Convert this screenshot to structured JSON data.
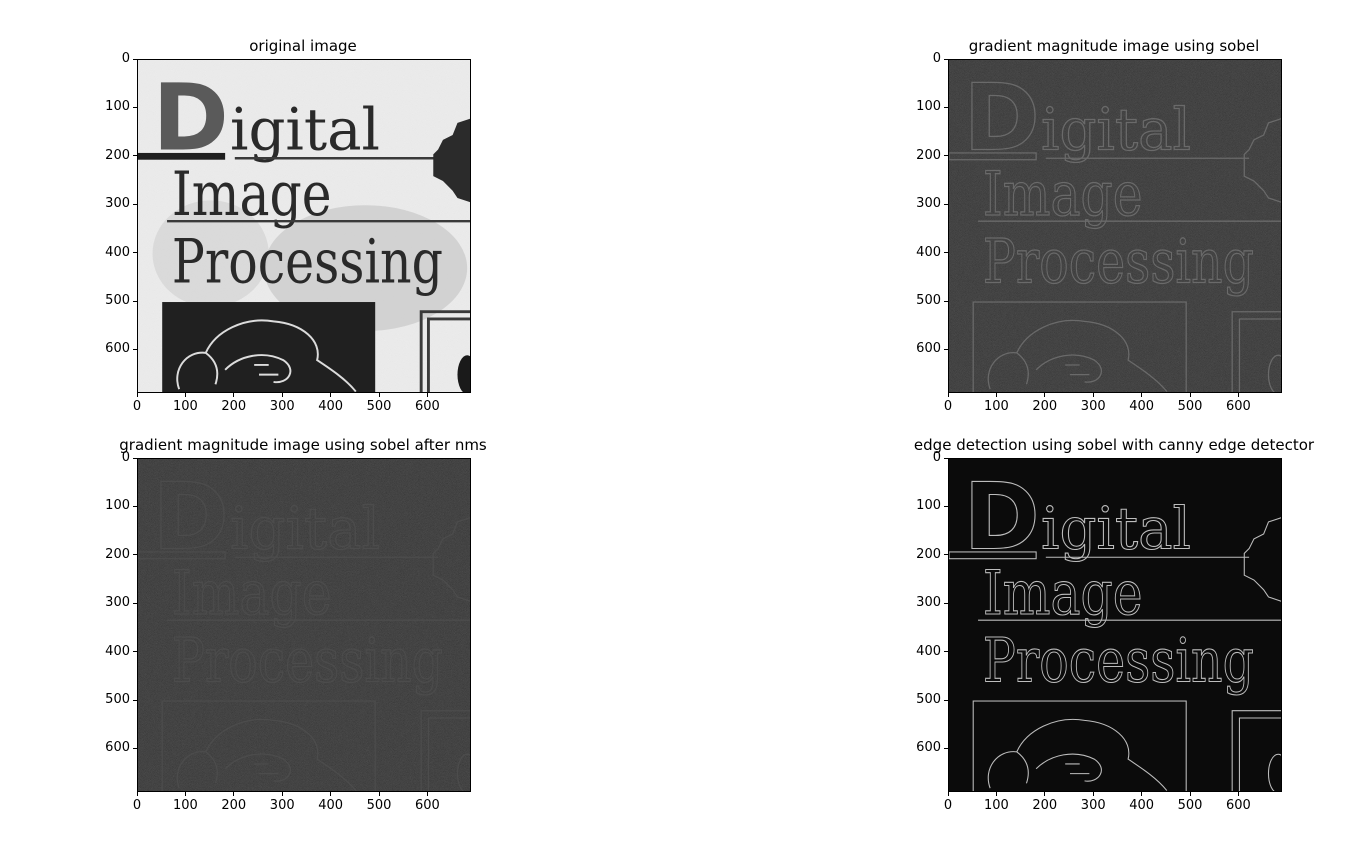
{
  "figure": {
    "panels": [
      {
        "id": "original",
        "title": "original image",
        "render": "original",
        "xticks": [
          "0",
          "100",
          "200",
          "300",
          "400",
          "500",
          "600"
        ],
        "yticks": [
          "0",
          "100",
          "200",
          "300",
          "400",
          "500",
          "600"
        ]
      },
      {
        "id": "sobel",
        "title": "gradient magnitude image using sobel",
        "render": "gradient",
        "xticks": [
          "0",
          "100",
          "200",
          "300",
          "400",
          "500",
          "600"
        ],
        "yticks": [
          "0",
          "100",
          "200",
          "300",
          "400",
          "500",
          "600"
        ]
      },
      {
        "id": "nms",
        "title": "gradient magnitude image using sobel after nms",
        "render": "nms",
        "xticks": [
          "0",
          "100",
          "200",
          "300",
          "400",
          "500",
          "600"
        ],
        "yticks": [
          "0",
          "100",
          "200",
          "300",
          "400",
          "500",
          "600"
        ]
      },
      {
        "id": "canny",
        "title": "edge detection using sobel with canny edge detector",
        "render": "canny",
        "xticks": [
          "0",
          "100",
          "200",
          "300",
          "400",
          "500",
          "600"
        ],
        "yticks": [
          "0",
          "100",
          "200",
          "300",
          "400",
          "500",
          "600"
        ]
      }
    ],
    "image_text": {
      "line1_rest": "igital",
      "line2": "Image",
      "line3": "Processing"
    },
    "axis_range": {
      "x": [
        0,
        690
      ],
      "y": [
        690,
        0
      ]
    }
  }
}
